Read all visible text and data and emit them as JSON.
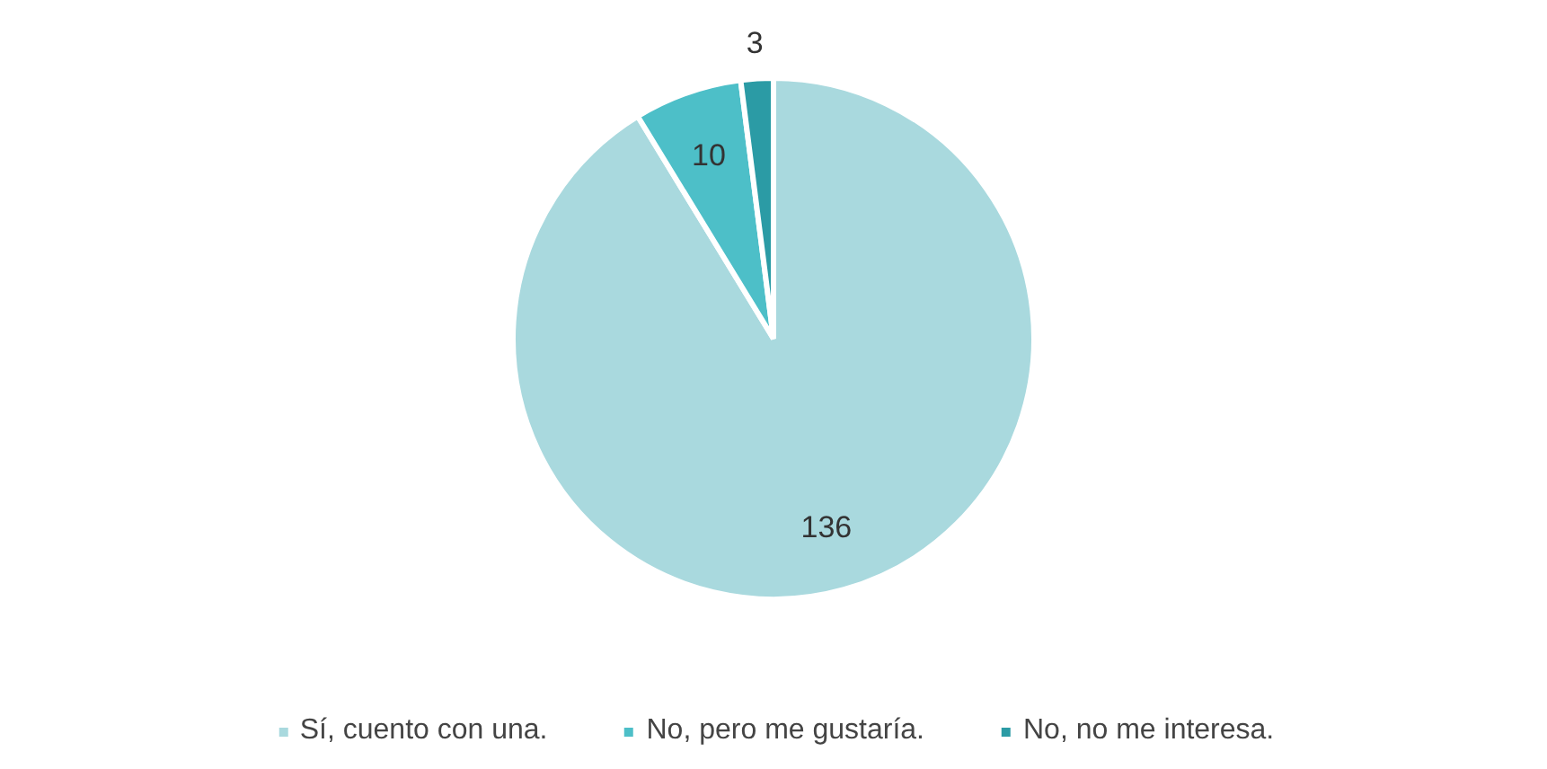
{
  "chart_data": {
    "type": "pie",
    "categories": [
      "Sí, cuento con una.",
      "No, pero me gustaría.",
      "No, no me interesa."
    ],
    "values": [
      136,
      10,
      3
    ],
    "colors": [
      "#a9d9de",
      "#4dbfc8",
      "#2b9ba5"
    ],
    "data_labels": true,
    "legend": "bottom"
  }
}
